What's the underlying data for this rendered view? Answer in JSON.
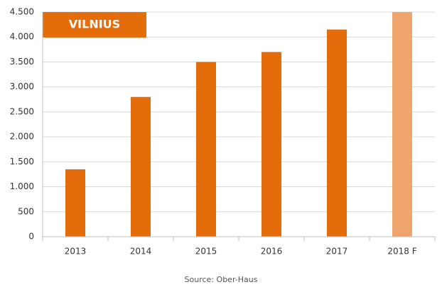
{
  "chart_data": {
    "type": "bar",
    "title": "VILNIUS",
    "categories": [
      "2013",
      "2014",
      "2015",
      "2016",
      "2017",
      "2018 F"
    ],
    "values": [
      1350,
      2800,
      3500,
      3700,
      4150,
      4500
    ],
    "colors": [
      "#e46c0a",
      "#e46c0a",
      "#e46c0a",
      "#e46c0a",
      "#e46c0a",
      "#f0a56c"
    ],
    "ylim": [
      0,
      4500
    ],
    "yticks": [
      0,
      500,
      {
        "value": 1000,
        "label": "1.000"
      },
      {
        "value": 1500,
        "label": "1.500"
      },
      {
        "value": 2000,
        "label": "2.000"
      },
      {
        "value": 2500,
        "label": "2.500"
      },
      {
        "value": 3000,
        "label": "3.000"
      },
      {
        "value": 3500,
        "label": "3.500"
      },
      {
        "value": 4000,
        "label": "4.000"
      },
      {
        "value": 4500,
        "label": "4.500"
      }
    ],
    "grid": true,
    "source": "Source: Ober-Haus"
  }
}
